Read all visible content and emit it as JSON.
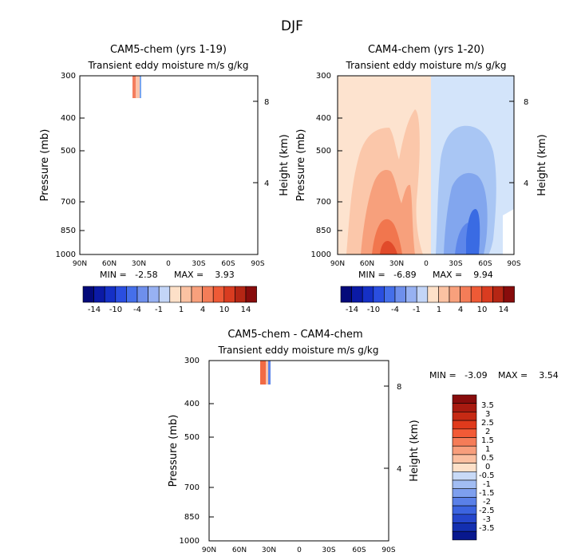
{
  "figure": {
    "title": "DJF"
  },
  "chart_data": [
    {
      "type": "heatmap",
      "title": "CAM5-chem (yrs 1-19)",
      "subtitle": "Transient eddy moisture m/s g/kg",
      "xlabel": "",
      "ylabel": "Pressure (mb)",
      "y2label": "Height (km)",
      "xticks": [
        "90N",
        "60N",
        "30N",
        "0",
        "30S",
        "60S",
        "90S"
      ],
      "yticks": [
        "300",
        "400",
        "500",
        "700",
        "850",
        "1000"
      ],
      "y2ticks": [
        "8",
        "4"
      ],
      "min_label": "MIN =   -2.58",
      "max_label": "MAX =    3.93",
      "colorbar_labels": [
        "-14",
        "-10",
        "-4",
        "-1",
        "1",
        "4",
        "10",
        "14"
      ],
      "field_summary": {
        "min": -2.58,
        "max": 3.93,
        "nonzero_region": "approx. 35N-30N, 300-350 mb"
      }
    },
    {
      "type": "heatmap",
      "title": "CAM4-chem (yrs 1-20)",
      "subtitle": "Transient eddy moisture m/s g/kg",
      "xlabel": "",
      "ylabel": "Pressure (mb)",
      "y2label": "Height (km)",
      "xticks": [
        "90N",
        "60N",
        "30N",
        "0",
        "30S",
        "60S",
        "90S"
      ],
      "yticks": [
        "300",
        "400",
        "500",
        "700",
        "850",
        "1000"
      ],
      "y2ticks": [
        "8",
        "4"
      ],
      "min_label": "MIN =   -6.89",
      "max_label": "MAX =    9.94",
      "colorbar_labels": [
        "-14",
        "-10",
        "-4",
        "-1",
        "1",
        "4",
        "10",
        "14"
      ],
      "field_summary": {
        "min": -6.89,
        "max": 9.94,
        "positive_region": "Northern Hemisphere, peak near 40N 1000 mb",
        "negative_region": "Southern Hemisphere, peak near 45S 900 mb"
      }
    },
    {
      "type": "heatmap",
      "title": "CAM5-chem - CAM4-chem",
      "subtitle": "Transient eddy moisture m/s g/kg",
      "xlabel": "",
      "ylabel": "Pressure (mb)",
      "y2label": "Height (km)",
      "xticks": [
        "90N",
        "60N",
        "30N",
        "0",
        "30S",
        "60S",
        "90S"
      ],
      "yticks": [
        "300",
        "400",
        "500",
        "700",
        "850",
        "1000"
      ],
      "y2ticks": [
        "8",
        "4"
      ],
      "min_label": "MIN =   -3.09",
      "max_label": "MAX =    3.54",
      "colorbar_labels": [
        "3.5",
        "3",
        "2.5",
        "2",
        "1.5",
        "1",
        "0.5",
        "0",
        "-0.5",
        "-1",
        "-1.5",
        "-2",
        "-2.5",
        "-3",
        "-3.5"
      ],
      "field_summary": {
        "min": -3.09,
        "max": 3.54,
        "nonzero_region": "approx. 35N-30N, 300-350 mb"
      }
    }
  ]
}
